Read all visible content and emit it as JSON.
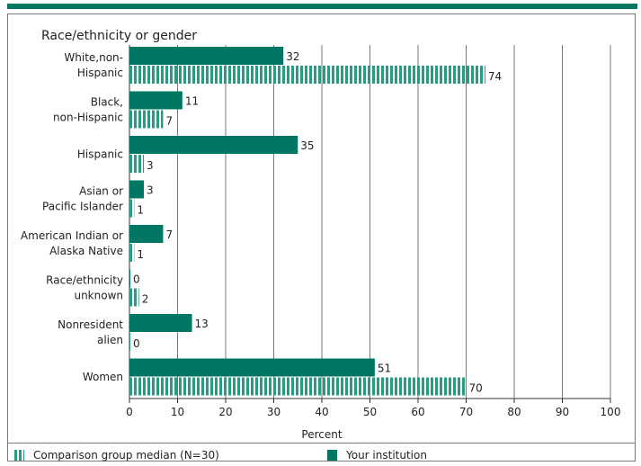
{
  "chart_data": {
    "type": "bar",
    "orientation": "horizontal",
    "title": "Race/ethnicity or gender",
    "xlabel": "Percent",
    "xlim": [
      0,
      100
    ],
    "xticks": [
      0,
      10,
      20,
      30,
      40,
      50,
      60,
      70,
      80,
      90,
      100
    ],
    "grid": true,
    "categories": [
      [
        "White,non-",
        "Hispanic"
      ],
      [
        "Black,",
        "non-Hispanic"
      ],
      [
        "Hispanic"
      ],
      [
        "Asian or",
        "Pacific Islander"
      ],
      [
        "American Indian or",
        "Alaska Native"
      ],
      [
        "Race/ethnicity",
        "unknown"
      ],
      [
        "Nonresident",
        "alien"
      ],
      [
        "Women"
      ]
    ],
    "series": [
      {
        "name": "Your institution",
        "style": "solid",
        "values": [
          32,
          11,
          35,
          3,
          7,
          0,
          13,
          51
        ]
      },
      {
        "name": "Comparison group median (N=30)",
        "style": "striped",
        "values": [
          74,
          7,
          3,
          1,
          1,
          2,
          0,
          70
        ]
      }
    ],
    "legend_position": "bottom",
    "colors": {
      "bar": "#007763",
      "stripe": "#2a9a82",
      "grid": "#7a7a7a",
      "topbar": "#007763"
    }
  },
  "legend": {
    "comparison_label": "Comparison group median (N=30)",
    "institution_label": "Your institution"
  }
}
